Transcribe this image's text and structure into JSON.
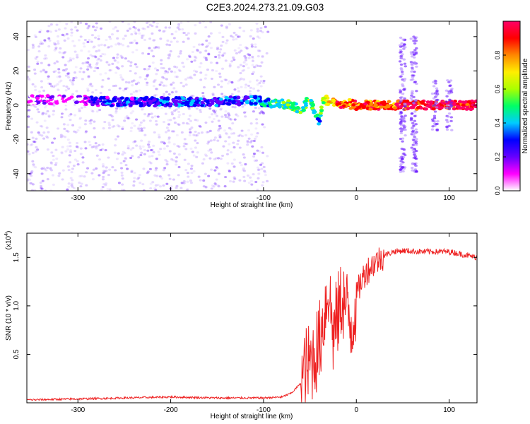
{
  "title": "C2E3.2024.273.21.09.G03",
  "colors": {
    "snr_line": "#ee2222",
    "points": "#7a22ff",
    "axis": "#000000"
  },
  "chart_data": [
    {
      "type": "heatmap",
      "title": "C2E3.2024.273.21.09.G03",
      "xlabel": "Height of straight line (km)",
      "ylabel": "Frequency (Hz)",
      "xlim": [
        -355,
        130
      ],
      "ylim": [
        -50,
        49
      ],
      "xticks": [
        -300,
        -200,
        -100,
        0,
        100
      ],
      "xtick_labels": [
        "-300",
        "-200",
        "-100",
        "0",
        "100"
      ],
      "yticks": [
        -40,
        -20,
        0,
        20,
        40
      ],
      "ytick_labels": [
        "-40",
        "-20",
        "0",
        "20",
        "40"
      ],
      "colorbar": {
        "label": "Normalized spectral amplitude",
        "range": [
          0,
          1
        ],
        "ticks": [
          0.0,
          0.2,
          0.4,
          0.6,
          0.8
        ],
        "tick_labels": [
          "0.0",
          "0.2",
          "0.4",
          "0.6",
          "0.8"
        ],
        "colors": [
          "#ffffff",
          "#ff00ff",
          "#6600ff",
          "#0000ff",
          "#00ccff",
          "#00ff66",
          "#aaff00",
          "#ffee00",
          "#ff8800",
          "#ff0000",
          "#ff0066"
        ]
      },
      "ridge": {
        "x": [
          -355,
          -300,
          -270,
          -200,
          -150,
          -110,
          -90,
          -70,
          -60,
          -50,
          -45,
          -40,
          -35,
          -30,
          -20,
          -10,
          0,
          20,
          40,
          45,
          70,
          90,
          130
        ],
        "frequency": [
          3,
          3,
          2,
          2,
          2,
          3,
          1,
          0,
          -3,
          4,
          -5,
          -10,
          4,
          2,
          1,
          1,
          0,
          0,
          0,
          0,
          0,
          0,
          0
        ],
        "amplitude": [
          0.05,
          0.1,
          0.25,
          0.28,
          0.27,
          0.3,
          0.45,
          0.55,
          0.5,
          0.55,
          0.45,
          0.4,
          0.6,
          0.7,
          0.85,
          0.8,
          0.85,
          0.85,
          0.85,
          0.9,
          0.95,
          0.95,
          0.95
        ]
      }
    },
    {
      "type": "line",
      "xlabel": "Height of straight line (km)",
      "ylabel": "SNR (10 * v/v)",
      "y_multiplier": "(x10",
      "y_multiplier_exp": "4",
      "y_multiplier_close": ")",
      "xlim": [
        -355,
        130
      ],
      "ylim": [
        0,
        1.75
      ],
      "xticks": [
        -300,
        -200,
        -100,
        0,
        100
      ],
      "xtick_labels": [
        "-300",
        "-200",
        "-100",
        "0",
        "100"
      ],
      "yticks": [
        0.5,
        1.0,
        1.5
      ],
      "ytick_labels": [
        "0.5",
        "1.0",
        "1.5"
      ],
      "series": [
        {
          "x": [
            -355,
            -300,
            -250,
            -200,
            -150,
            -100,
            -80,
            -70,
            -60,
            -55,
            -50,
            -45,
            -40,
            -35,
            -30,
            -25,
            -20,
            -15,
            -10,
            -5,
            0,
            5,
            10,
            20,
            30,
            40,
            50,
            70,
            100,
            130
          ],
          "y": [
            0.03,
            0.04,
            0.05,
            0.06,
            0.05,
            0.05,
            0.06,
            0.1,
            0.2,
            0.35,
            0.4,
            0.5,
            0.6,
            0.9,
            1.2,
            0.7,
            0.9,
            1.1,
            0.95,
            0.8,
            1.1,
            1.25,
            1.35,
            1.45,
            1.52,
            1.56,
            1.57,
            1.56,
            1.56,
            1.5
          ]
        }
      ]
    }
  ]
}
